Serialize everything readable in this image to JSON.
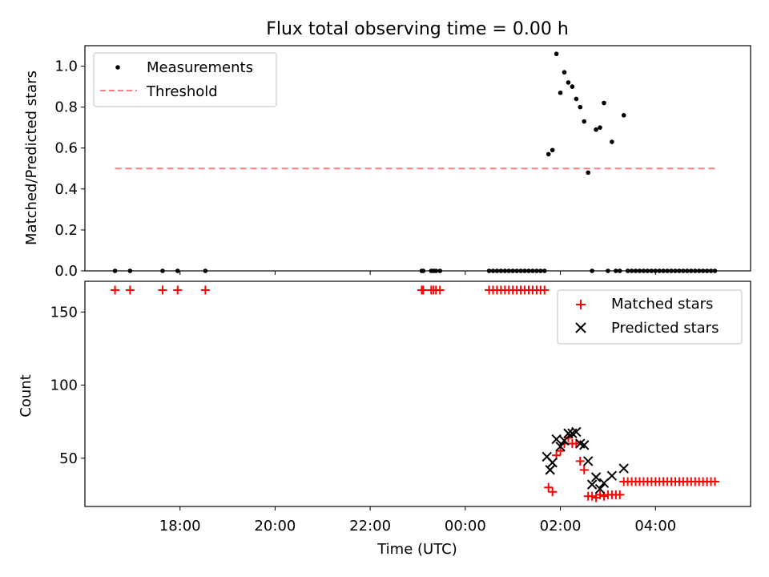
{
  "chart_data": [
    {
      "type": "scatter",
      "title": "Flux total observing time = 0.00 h",
      "xlabel": "",
      "ylabel": "Matched/Predicted stars",
      "ylim": [
        0,
        1.1
      ],
      "yticks": [
        "0.0",
        "0.2",
        "0.4",
        "0.6",
        "0.8",
        "1.0"
      ],
      "legend_position": "upper-left",
      "series": [
        {
          "name": "Measurements",
          "marker": "dot",
          "color": "#000000",
          "points": [
            [
              "16:38",
              0.0
            ],
            [
              "16:57",
              0.0
            ],
            [
              "17:38",
              0.0
            ],
            [
              "17:57",
              0.0
            ],
            [
              "18:32",
              0.0
            ],
            [
              "23:05",
              0.0
            ],
            [
              "23:07",
              0.0
            ],
            [
              "23:17",
              0.0
            ],
            [
              "23:20",
              0.0
            ],
            [
              "23:23",
              0.0
            ],
            [
              "23:28",
              0.0
            ],
            [
              "00:30",
              0.0
            ],
            [
              "00:35",
              0.0
            ],
            [
              "00:40",
              0.0
            ],
            [
              "00:45",
              0.0
            ],
            [
              "00:50",
              0.0
            ],
            [
              "00:55",
              0.0
            ],
            [
              "01:00",
              0.0
            ],
            [
              "01:05",
              0.0
            ],
            [
              "01:10",
              0.0
            ],
            [
              "01:15",
              0.0
            ],
            [
              "01:20",
              0.0
            ],
            [
              "01:25",
              0.0
            ],
            [
              "01:30",
              0.0
            ],
            [
              "01:35",
              0.0
            ],
            [
              "01:40",
              0.0
            ],
            [
              "01:45",
              0.57
            ],
            [
              "01:50",
              0.59
            ],
            [
              "01:55",
              1.06
            ],
            [
              "02:00",
              0.87
            ],
            [
              "02:05",
              0.97
            ],
            [
              "02:10",
              0.92
            ],
            [
              "02:15",
              0.9
            ],
            [
              "02:20",
              0.84
            ],
            [
              "02:25",
              0.8
            ],
            [
              "02:30",
              0.73
            ],
            [
              "02:35",
              0.48
            ],
            [
              "02:40",
              0.0
            ],
            [
              "02:45",
              0.69
            ],
            [
              "02:50",
              0.7
            ],
            [
              "02:55",
              0.82
            ],
            [
              "03:00",
              0.0
            ],
            [
              "03:05",
              0.63
            ],
            [
              "03:10",
              0.0
            ],
            [
              "03:15",
              0.0
            ],
            [
              "03:20",
              0.76
            ],
            [
              "03:25",
              0.0
            ],
            [
              "03:30",
              0.0
            ],
            [
              "03:35",
              0.0
            ],
            [
              "03:40",
              0.0
            ],
            [
              "03:45",
              0.0
            ],
            [
              "03:50",
              0.0
            ],
            [
              "03:55",
              0.0
            ],
            [
              "04:00",
              0.0
            ],
            [
              "04:05",
              0.0
            ],
            [
              "04:10",
              0.0
            ],
            [
              "04:15",
              0.0
            ],
            [
              "04:20",
              0.0
            ],
            [
              "04:25",
              0.0
            ],
            [
              "04:30",
              0.0
            ],
            [
              "04:35",
              0.0
            ],
            [
              "04:40",
              0.0
            ],
            [
              "04:45",
              0.0
            ],
            [
              "04:50",
              0.0
            ],
            [
              "04:55",
              0.0
            ],
            [
              "05:00",
              0.0
            ],
            [
              "05:05",
              0.0
            ],
            [
              "05:10",
              0.0
            ],
            [
              "05:15",
              0.0
            ]
          ]
        },
        {
          "name": "Threshold",
          "marker": "dashed-line",
          "color": "#ff7f7f",
          "points": [
            [
              "16:38",
              0.5
            ],
            [
              "05:15",
              0.5
            ]
          ]
        }
      ]
    },
    {
      "type": "scatter",
      "title": "",
      "xlabel": "Time (UTC)",
      "ylabel": "Count",
      "ylim": [
        17,
        171
      ],
      "yticks": [
        "50",
        "100",
        "150"
      ],
      "xticks": [
        "18:00",
        "20:00",
        "22:00",
        "00:00",
        "02:00",
        "04:00"
      ],
      "legend_position": "upper-right",
      "series": [
        {
          "name": "Matched stars",
          "marker": "plus",
          "color": "#ff0000",
          "points": [
            [
              "16:38",
              165
            ],
            [
              "16:57",
              165
            ],
            [
              "17:38",
              165
            ],
            [
              "17:57",
              165
            ],
            [
              "18:32",
              165
            ],
            [
              "23:05",
              165
            ],
            [
              "23:07",
              165
            ],
            [
              "23:17",
              165
            ],
            [
              "23:20",
              165
            ],
            [
              "23:23",
              165
            ],
            [
              "23:28",
              165
            ],
            [
              "00:30",
              165
            ],
            [
              "00:35",
              165
            ],
            [
              "00:40",
              165
            ],
            [
              "00:45",
              165
            ],
            [
              "00:50",
              165
            ],
            [
              "00:55",
              165
            ],
            [
              "01:00",
              165
            ],
            [
              "01:05",
              165
            ],
            [
              "01:10",
              165
            ],
            [
              "01:15",
              165
            ],
            [
              "01:20",
              165
            ],
            [
              "01:25",
              165
            ],
            [
              "01:30",
              165
            ],
            [
              "01:35",
              165
            ],
            [
              "01:40",
              165
            ],
            [
              "01:45",
              30
            ],
            [
              "01:50",
              27
            ],
            [
              "01:55",
              52
            ],
            [
              "02:00",
              55
            ],
            [
              "02:05",
              60
            ],
            [
              "02:10",
              64
            ],
            [
              "02:15",
              60
            ],
            [
              "02:20",
              60
            ],
            [
              "02:25",
              48
            ],
            [
              "02:30",
              42
            ],
            [
              "02:35",
              24
            ],
            [
              "02:40",
              24
            ],
            [
              "02:45",
              23
            ],
            [
              "02:50",
              25
            ],
            [
              "02:55",
              24
            ],
            [
              "03:00",
              25
            ],
            [
              "03:05",
              25
            ],
            [
              "03:10",
              25
            ],
            [
              "03:15",
              25
            ],
            [
              "03:20",
              34
            ],
            [
              "03:25",
              34
            ],
            [
              "03:30",
              34
            ],
            [
              "03:35",
              34
            ],
            [
              "03:40",
              34
            ],
            [
              "03:45",
              34
            ],
            [
              "03:50",
              34
            ],
            [
              "03:55",
              34
            ],
            [
              "04:00",
              34
            ],
            [
              "04:05",
              34
            ],
            [
              "04:10",
              34
            ],
            [
              "04:15",
              34
            ],
            [
              "04:20",
              34
            ],
            [
              "04:25",
              34
            ],
            [
              "04:30",
              34
            ],
            [
              "04:35",
              34
            ],
            [
              "04:40",
              34
            ],
            [
              "04:45",
              34
            ],
            [
              "04:50",
              34
            ],
            [
              "04:55",
              34
            ],
            [
              "05:00",
              34
            ],
            [
              "05:05",
              34
            ],
            [
              "05:10",
              34
            ],
            [
              "05:15",
              34
            ]
          ]
        },
        {
          "name": "Predicted stars",
          "marker": "x",
          "color": "#000000",
          "points": [
            [
              "01:43",
              51
            ],
            [
              "01:47",
              42
            ],
            [
              "01:50",
              47
            ],
            [
              "01:55",
              63
            ],
            [
              "02:00",
              58
            ],
            [
              "02:05",
              62
            ],
            [
              "02:10",
              67
            ],
            [
              "02:15",
              67
            ],
            [
              "02:20",
              68
            ],
            [
              "02:25",
              60
            ],
            [
              "02:30",
              59
            ],
            [
              "02:35",
              48
            ],
            [
              "02:40",
              32
            ],
            [
              "02:45",
              37
            ],
            [
              "02:50",
              29
            ],
            [
              "02:55",
              33
            ],
            [
              "03:05",
              38
            ],
            [
              "03:20",
              43
            ]
          ]
        }
      ]
    }
  ]
}
